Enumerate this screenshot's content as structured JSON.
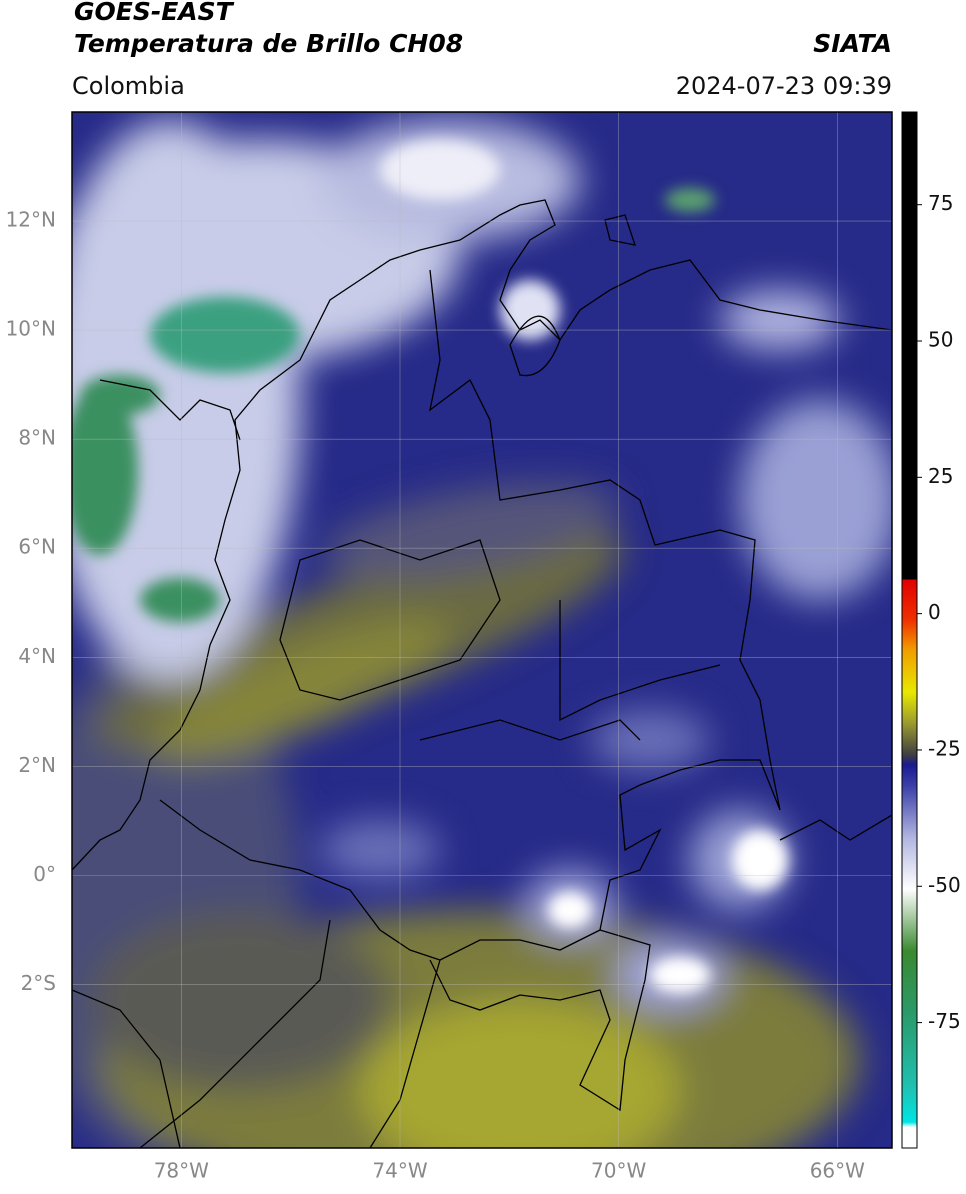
{
  "header": {
    "title_line1": "GOES-EAST",
    "title_line2": "Temperatura de Brillo CH08",
    "region": "Colombia",
    "source": "SIATA",
    "datetime": "2024-07-23 09:39"
  },
  "map": {
    "lon_range": [
      -80,
      -65
    ],
    "lat_range": [
      -5,
      14
    ],
    "lon_ticks": [
      {
        "value": -78,
        "label": "78°W"
      },
      {
        "value": -74,
        "label": "74°W"
      },
      {
        "value": -70,
        "label": "70°W"
      },
      {
        "value": -66,
        "label": "66°W"
      }
    ],
    "lat_ticks": [
      {
        "value": 12,
        "label": "12°N"
      },
      {
        "value": 10,
        "label": "10°N"
      },
      {
        "value": 8,
        "label": "8°N"
      },
      {
        "value": 6,
        "label": "6°N"
      },
      {
        "value": 4,
        "label": "4°N"
      },
      {
        "value": 2,
        "label": "2°N"
      },
      {
        "value": 0,
        "label": "0°"
      },
      {
        "value": -2,
        "label": "2°S"
      }
    ],
    "grid": true
  },
  "colorbar": {
    "lim": [
      -98,
      92
    ],
    "ticks": [
      75,
      50,
      25,
      0,
      -25,
      -50,
      -75
    ]
  }
}
